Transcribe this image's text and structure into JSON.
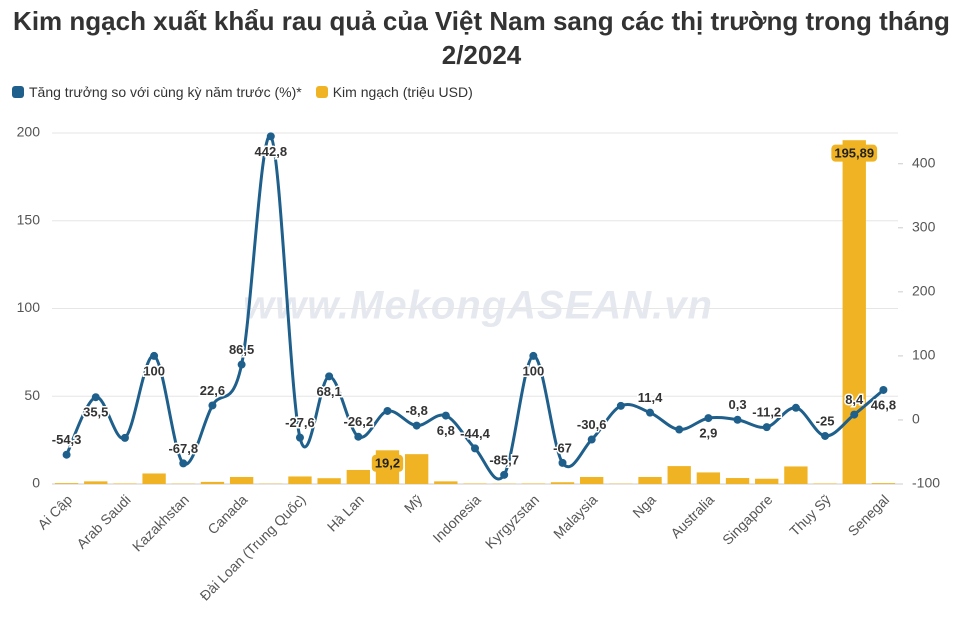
{
  "chart_data": {
    "type": "combo",
    "title": "Kim ngạch xuất khẩu rau quả của Việt Nam sang các thị trường trong tháng 2/2024",
    "watermark": "www.MekongASEAN.vn",
    "categories": [
      "Ai Cập",
      null,
      "Arab Saudi",
      null,
      "Kazakhstan",
      null,
      "Canada",
      null,
      "Đài Loan (Trung Quốc)",
      null,
      "Hà Lan",
      null,
      "Mỹ",
      null,
      "Indonesia",
      null,
      "Kyrgyzstan",
      null,
      "Malaysia",
      null,
      "Nga",
      null,
      "Australia",
      null,
      "Singapore",
      null,
      "Thụy Sỹ",
      null,
      "Senegal"
    ],
    "series": [
      {
        "name": "Tăng trưởng so với cùng kỳ năm trước (%)*",
        "type": "line",
        "axis": "y2",
        "color": "#1f5f8b",
        "values": [
          -54.3,
          35.5,
          -28,
          100,
          -67.8,
          22.6,
          86.5,
          442.8,
          -27.6,
          68.1,
          -26.2,
          14,
          -8.8,
          6.8,
          -44.4,
          -85.7,
          100,
          -67,
          -30.6,
          22,
          11.4,
          -15,
          2.9,
          0.3,
          -11.2,
          19,
          -25,
          8.4,
          46.8
        ],
        "value_labels": [
          "-54,3",
          "35,5",
          null,
          "100",
          "-67,8",
          "22,6",
          "86,5",
          "442,8",
          "-27,6",
          "68,1",
          "-26,2",
          null,
          "-8,8",
          "6,8",
          "-44,4",
          "-85,7",
          "100",
          "-67",
          "-30,6",
          null,
          "11,4",
          null,
          "2,9",
          "0,3",
          "-11,2",
          null,
          "-25",
          "8,4",
          "46,8"
        ]
      },
      {
        "name": "Kim ngạch (triệu USD)",
        "type": "bar",
        "color": "#f0b323",
        "values": [
          0.5,
          1.5,
          0.3,
          6,
          0.2,
          1.2,
          4,
          0.2,
          4.3,
          3.3,
          8,
          19.2,
          17,
          1.5,
          0.3,
          0.2,
          0.3,
          1,
          4,
          0.2,
          4,
          10.2,
          6.6,
          3.4,
          3,
          10,
          0.3,
          195.89,
          0.5
        ],
        "value_labels": [
          null,
          null,
          null,
          null,
          null,
          null,
          null,
          null,
          null,
          null,
          null,
          "19,2",
          null,
          null,
          null,
          null,
          null,
          null,
          null,
          null,
          null,
          null,
          null,
          null,
          null,
          null,
          null,
          "195,89",
          null
        ]
      }
    ],
    "ylim": [
      0,
      200
    ],
    "yticks": [
      0,
      50,
      100,
      150,
      200
    ],
    "y2lim": [
      -100,
      448
    ],
    "y2ticks": [
      -100,
      0,
      100,
      200,
      300,
      400
    ],
    "grid": true,
    "legend": "top"
  }
}
